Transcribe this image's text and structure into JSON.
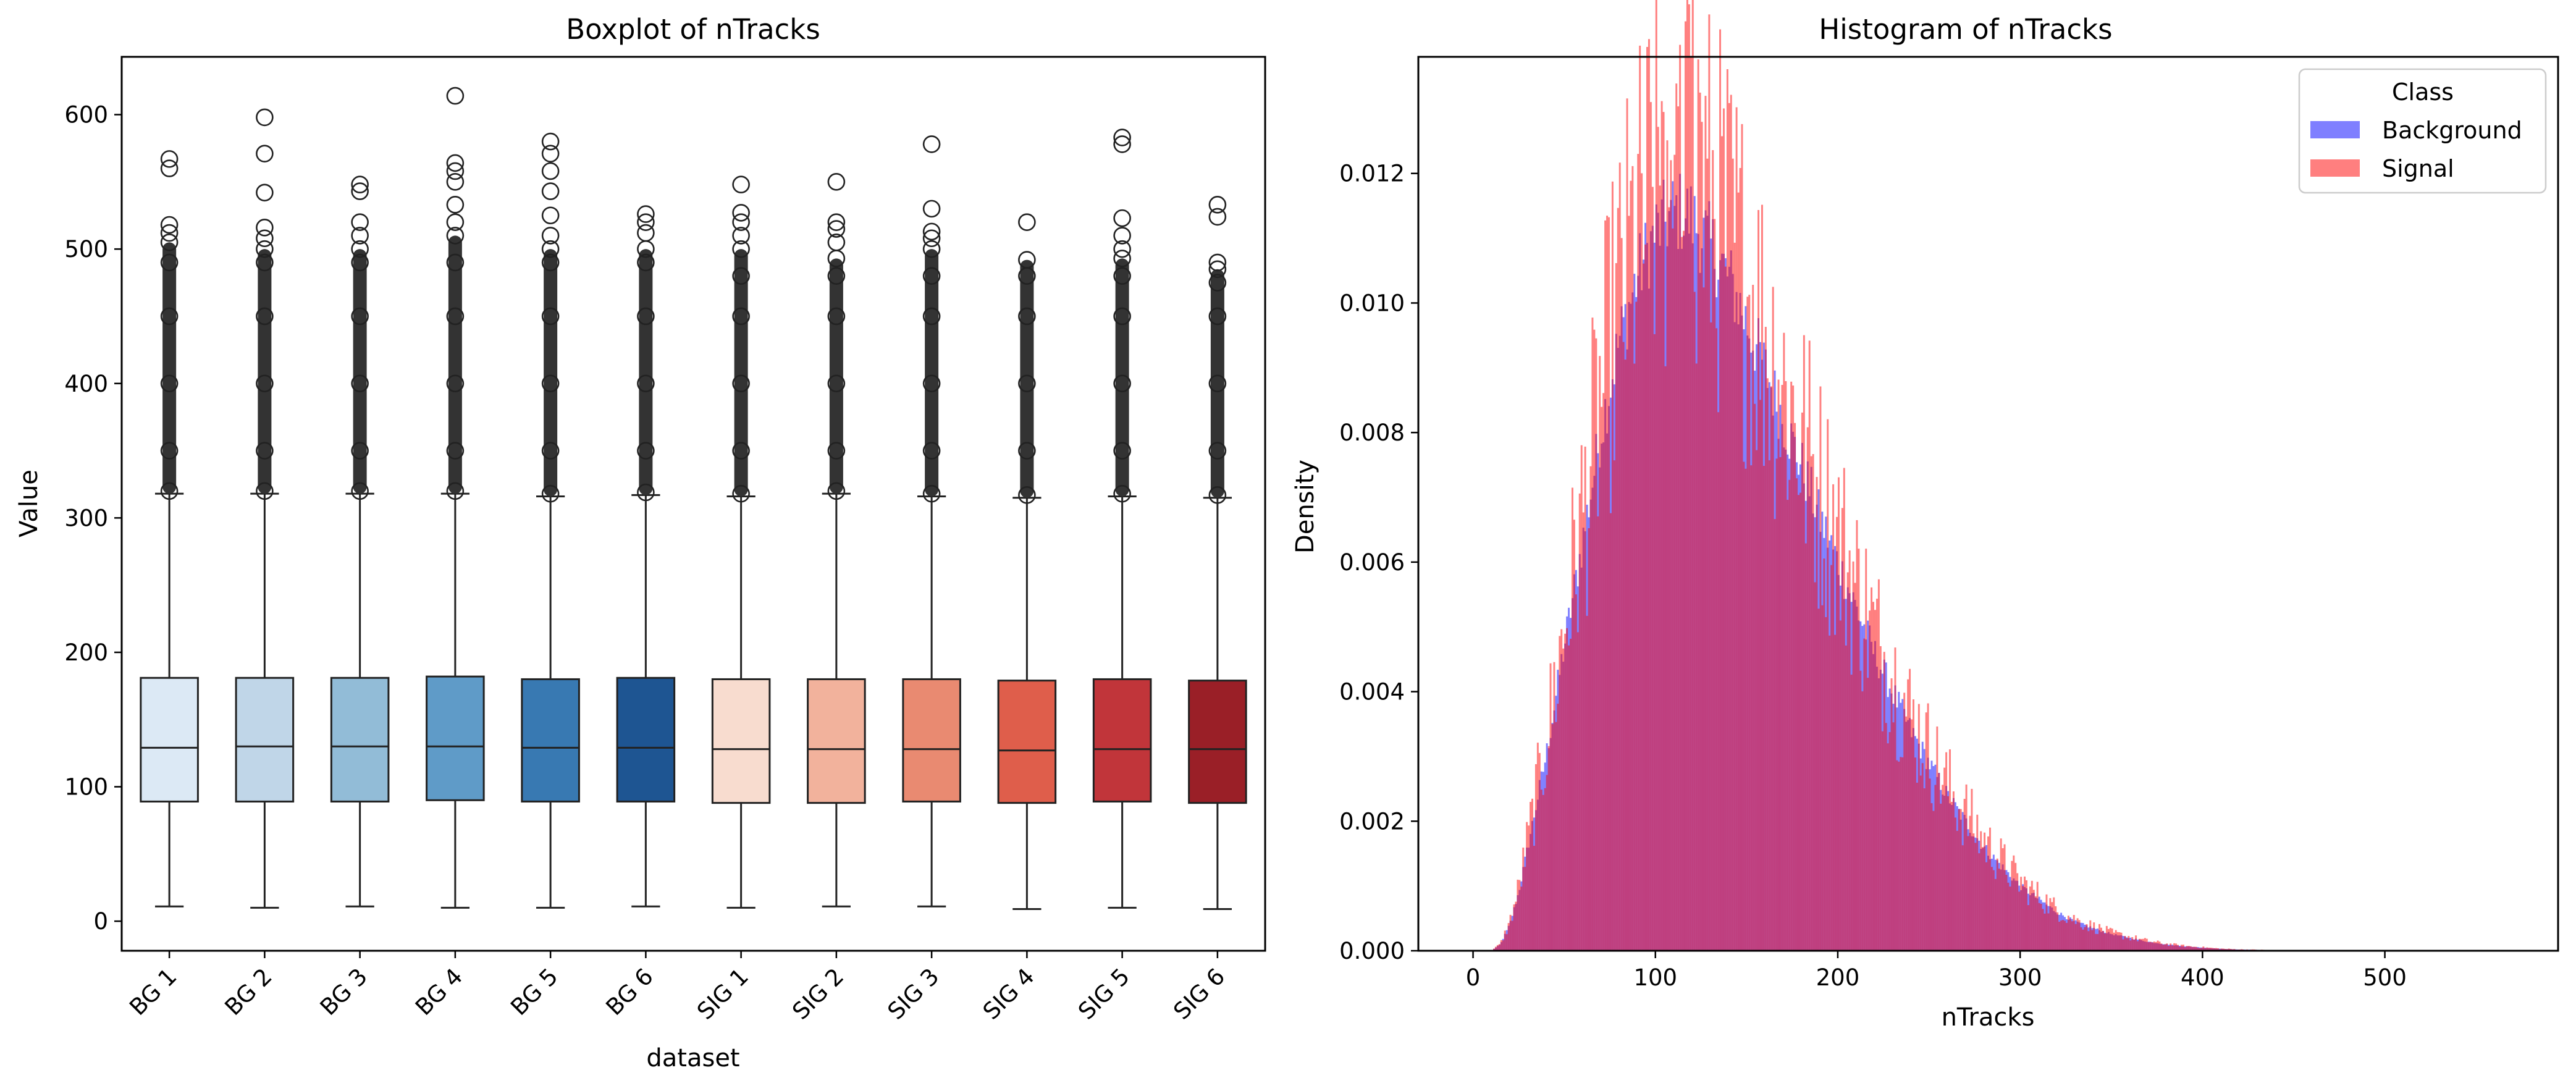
{
  "chart_data": [
    {
      "type": "box",
      "title": "Boxplot of nTracks",
      "xlabel": "dataset",
      "ylabel": "Value",
      "ylim": [
        -22,
        643
      ],
      "yticks": [
        0,
        100,
        200,
        300,
        400,
        500,
        600
      ],
      "categories": [
        "BG 1",
        "BG 2",
        "BG 3",
        "BG 4",
        "BG 5",
        "BG 6",
        "SIG 1",
        "SIG 2",
        "SIG 3",
        "SIG 4",
        "SIG 5",
        "SIG 6"
      ],
      "colors": [
        "#dce9f5",
        "#c0d6e8",
        "#92bcd7",
        "#5f9bc8",
        "#3879b2",
        "#1e5592",
        "#f8dccf",
        "#f2b29c",
        "#e98a71",
        "#df5e4b",
        "#c1353a",
        "#9a1f27"
      ],
      "boxes": [
        {
          "min": 11,
          "q1": 89,
          "median": 129,
          "q3": 181,
          "max": 318,
          "outliers": [
            320,
            350,
            400,
            450,
            490,
            505,
            512,
            518,
            560,
            567
          ]
        },
        {
          "min": 10,
          "q1": 89,
          "median": 130,
          "q3": 181,
          "max": 318,
          "outliers": [
            320,
            350,
            400,
            450,
            490,
            500,
            508,
            516,
            542,
            571,
            598
          ]
        },
        {
          "min": 11,
          "q1": 89,
          "median": 130,
          "q3": 181,
          "max": 318,
          "outliers": [
            320,
            350,
            400,
            450,
            490,
            500,
            510,
            520,
            543,
            548
          ]
        },
        {
          "min": 10,
          "q1": 90,
          "median": 130,
          "q3": 182,
          "max": 318,
          "outliers": [
            320,
            350,
            400,
            450,
            490,
            510,
            520,
            533,
            550,
            558,
            564,
            614
          ]
        },
        {
          "min": 10,
          "q1": 89,
          "median": 129,
          "q3": 180,
          "max": 316,
          "outliers": [
            318,
            350,
            400,
            450,
            490,
            500,
            510,
            525,
            543,
            558,
            571,
            580
          ]
        },
        {
          "min": 11,
          "q1": 89,
          "median": 129,
          "q3": 181,
          "max": 317,
          "outliers": [
            319,
            350,
            400,
            450,
            490,
            500,
            512,
            520,
            526
          ]
        },
        {
          "min": 10,
          "q1": 88,
          "median": 128,
          "q3": 180,
          "max": 316,
          "outliers": [
            318,
            350,
            400,
            450,
            480,
            500,
            510,
            520,
            527,
            548
          ]
        },
        {
          "min": 11,
          "q1": 88,
          "median": 128,
          "q3": 180,
          "max": 318,
          "outliers": [
            320,
            350,
            400,
            450,
            480,
            493,
            505,
            515,
            520,
            550
          ]
        },
        {
          "min": 11,
          "q1": 89,
          "median": 128,
          "q3": 180,
          "max": 316,
          "outliers": [
            318,
            350,
            400,
            450,
            480,
            500,
            508,
            513,
            530,
            578
          ]
        },
        {
          "min": 9,
          "q1": 88,
          "median": 127,
          "q3": 179,
          "max": 315,
          "outliers": [
            317,
            350,
            400,
            450,
            480,
            492,
            520
          ]
        },
        {
          "min": 10,
          "q1": 89,
          "median": 128,
          "q3": 180,
          "max": 316,
          "outliers": [
            318,
            350,
            400,
            450,
            480,
            493,
            500,
            510,
            523,
            578,
            583
          ]
        },
        {
          "min": 9,
          "q1": 88,
          "median": 128,
          "q3": 179,
          "max": 315,
          "outliers": [
            317,
            350,
            400,
            450,
            475,
            485,
            490,
            524,
            533
          ]
        }
      ]
    },
    {
      "type": "histogram",
      "title": "Histogram of nTracks",
      "xlabel": "nTracks",
      "ylabel": "Density",
      "xlim": [
        -30,
        595
      ],
      "ylim": [
        0,
        0.0138
      ],
      "xticks": [
        0,
        100,
        200,
        300,
        400,
        500
      ],
      "yticks": [
        0.0,
        0.002,
        0.004,
        0.006,
        0.008,
        0.01,
        0.012
      ],
      "ytick_labels": [
        "0.000",
        "0.002",
        "0.004",
        "0.006",
        "0.008",
        "0.010",
        "0.012"
      ],
      "legend": {
        "title": "Class",
        "position": "top-right"
      },
      "series": [
        {
          "name": "Background",
          "color": "#0000ff",
          "alpha": 0.5,
          "peak_x": 115,
          "peak_density": 0.0113
        },
        {
          "name": "Signal",
          "color": "#ff0000",
          "alpha": 0.5,
          "peak_x": 112,
          "peak_density": 0.0132
        }
      ],
      "density_profile": {
        "x": [
          0,
          10,
          15,
          20,
          25,
          30,
          40,
          50,
          60,
          70,
          80,
          90,
          100,
          110,
          115,
          120,
          130,
          140,
          150,
          160,
          170,
          180,
          190,
          200,
          210,
          220,
          230,
          240,
          250,
          260,
          270,
          280,
          290,
          300,
          310,
          320,
          330,
          340,
          350,
          360,
          370,
          380,
          390,
          400,
          410,
          420,
          440,
          460,
          480,
          500,
          540,
          570
        ],
        "y": [
          0,
          0,
          0.0001,
          0.0004,
          0.0009,
          0.0016,
          0.003,
          0.0047,
          0.0063,
          0.008,
          0.0094,
          0.0104,
          0.0111,
          0.0114,
          0.0114,
          0.0113,
          0.0109,
          0.0104,
          0.0097,
          0.009,
          0.0082,
          0.0075,
          0.0067,
          0.006,
          0.0053,
          0.0046,
          0.004,
          0.0034,
          0.0029,
          0.0024,
          0.002,
          0.0016,
          0.0013,
          0.001,
          0.0008,
          0.0006,
          0.00045,
          0.00035,
          0.00026,
          0.0002,
          0.00014,
          0.0001,
          7e-05,
          5e-05,
          3e-05,
          2e-05,
          1e-05,
          5e-06,
          2e-06,
          1e-06,
          0,
          0
        ]
      }
    }
  ]
}
